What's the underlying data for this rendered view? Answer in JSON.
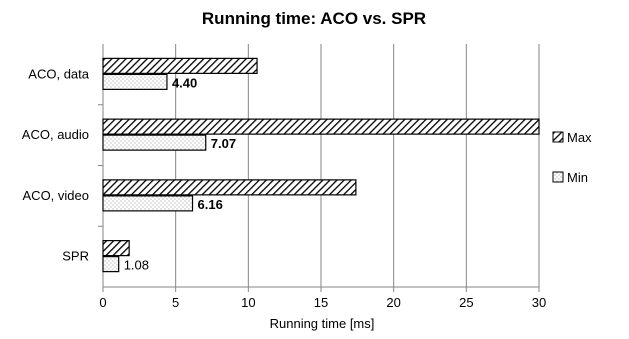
{
  "chart_data": {
    "type": "bar",
    "orientation": "horizontal",
    "title": "Running time: ACO vs. SPR",
    "xlabel": "Running time [ms]",
    "ylabel": "",
    "xlim": [
      0,
      30
    ],
    "xticks": [
      0,
      5,
      10,
      15,
      20,
      25,
      30
    ],
    "grid": true,
    "legend_position": "right",
    "categories": [
      "ACO, data",
      "ACO, audio",
      "ACO, video",
      "SPR"
    ],
    "series": [
      {
        "name": "Max",
        "values": [
          10.6,
          30.0,
          17.4,
          1.8
        ],
        "pattern": "diagonal-hatch"
      },
      {
        "name": "Min",
        "values": [
          4.4,
          7.07,
          6.16,
          1.08
        ],
        "pattern": "dotted"
      }
    ],
    "data_labels": {
      "Min": [
        {
          "text": "4.40",
          "bold": true
        },
        {
          "text": "7.07",
          "bold": true
        },
        {
          "text": "6.16",
          "bold": true
        },
        {
          "text": "1.08",
          "bold": false
        }
      ]
    }
  }
}
